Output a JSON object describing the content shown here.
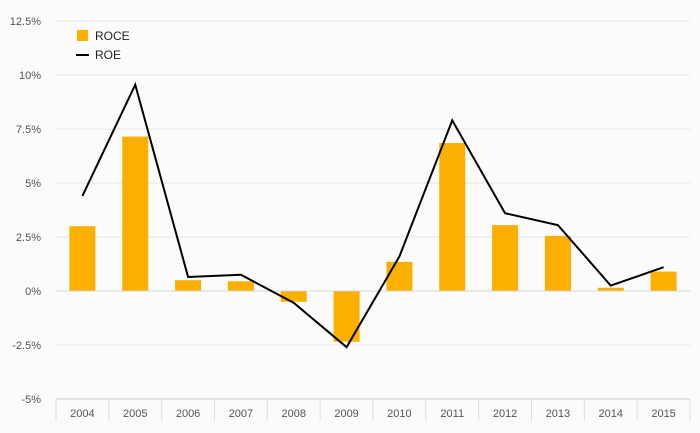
{
  "chart_data": {
    "type": "bar",
    "categories": [
      "2004",
      "2005",
      "2006",
      "2007",
      "2008",
      "2009",
      "2010",
      "2011",
      "2012",
      "2013",
      "2014",
      "2015"
    ],
    "series": [
      {
        "name": "ROCE",
        "type": "bar",
        "color": "#fbb000",
        "values": [
          3.0,
          7.15,
          0.5,
          0.45,
          -0.5,
          -2.35,
          1.35,
          6.85,
          3.05,
          2.55,
          0.15,
          0.9
        ]
      },
      {
        "name": "ROE",
        "type": "line",
        "color": "#000000",
        "values": [
          4.4,
          9.55,
          0.65,
          0.75,
          -0.55,
          -2.6,
          1.6,
          7.9,
          3.6,
          3.05,
          0.25,
          1.1
        ]
      }
    ],
    "yticks": [
      -5,
      -2.5,
      0,
      2.5,
      5,
      7.5,
      10,
      12.5
    ],
    "ytick_labels": [
      "-5%",
      "-2.5%",
      "0%",
      "2.5%",
      "5%",
      "7.5%",
      "10%",
      "12.5%"
    ],
    "ylim": [
      -5,
      12.5
    ],
    "grid": true,
    "legend_position": "top-left",
    "title": "",
    "xlabel": "",
    "ylabel": ""
  }
}
